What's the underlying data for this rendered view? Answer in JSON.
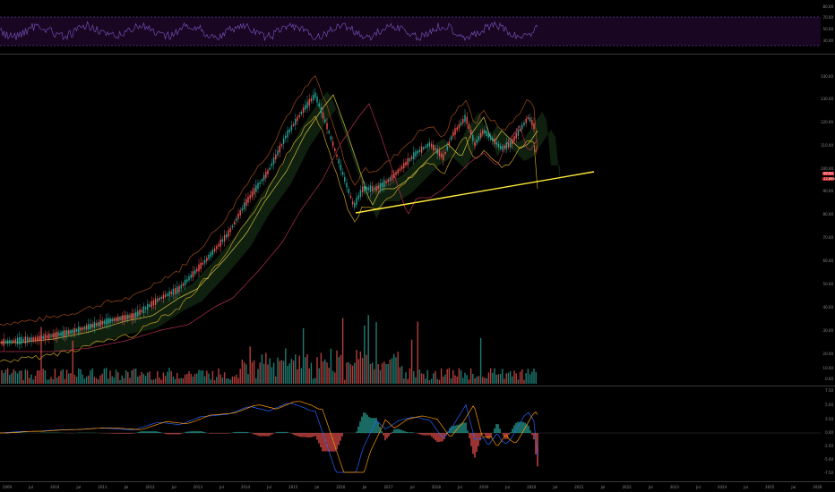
{
  "rsi_axis": {
    "labels": [
      "80.00",
      "70.00",
      "50.00",
      "30.00"
    ]
  },
  "price_axis": {
    "labels": [
      "140.00",
      "130.00",
      "120.00",
      "110.00",
      "100.00",
      "90.00",
      "80.00",
      "70.00",
      "60.00",
      "50.00",
      "40.00",
      "30.00",
      "20.00",
      "10.00",
      "0.00"
    ]
  },
  "price_badges": {
    "last": "97.00",
    "change": "-12.88%"
  },
  "macd_axis": {
    "labels": [
      "7.50",
      "5.00",
      "2.50",
      "0.00",
      "-2.50",
      "-5.00",
      "-7.50"
    ]
  },
  "time_axis": {
    "labels": [
      "2009",
      "Jul",
      "2010",
      "Jul",
      "2011",
      "Jul",
      "2012",
      "Jul",
      "2013",
      "Jul",
      "2014",
      "Jul",
      "2015",
      "Jul",
      "2016",
      "Jul",
      "2017",
      "Jul",
      "2018",
      "Jul",
      "2019",
      "Jul",
      "2020",
      "Jul",
      "2021",
      "Jul",
      "2022",
      "Jul",
      "2023",
      "Jul",
      "2024",
      "Jul",
      "2025",
      "Jul",
      "2026"
    ]
  },
  "colors": {
    "background": "#000000",
    "up": "#26a69a",
    "down": "#ef5350",
    "rsi_line": "#7e57c2",
    "rsi_band": "#2a0a3a",
    "trendline": "#ffeb3b",
    "macd_line": "#2962ff",
    "signal_line": "#ff9800"
  }
}
